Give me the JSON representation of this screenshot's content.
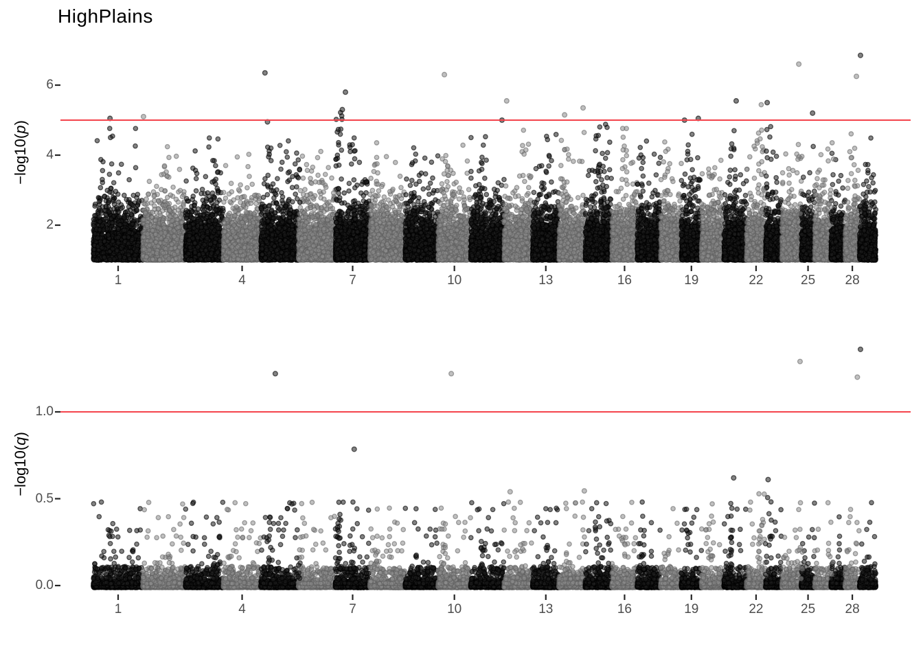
{
  "title": "HighPlains",
  "colors": {
    "background": "#ffffff",
    "significance_line": "#f4434b",
    "point_dark": "#1e1e1e",
    "point_gray": "#8c8c8c",
    "tick_mark": "#262626",
    "tick_label": "#4d4d4d",
    "axis_title": "#000000"
  },
  "genome": {
    "n_chromosomes": 29,
    "chromosome_lengths_mb": [
      158,
      136,
      121,
      120,
      120,
      118,
      110,
      113,
      105,
      104,
      107,
      91,
      84,
      84,
      85,
      81,
      75,
      66,
      64,
      72,
      72,
      61,
      52,
      62,
      43,
      52,
      45,
      46,
      52
    ]
  },
  "chart_data": [
    {
      "panel": "top",
      "type": "scatter",
      "subtype": "manhattan",
      "title": "HighPlains",
      "xlabel": "",
      "ylabel": "−log10(p)",
      "ylabel_prefix": "−log10(",
      "ylabel_var": "p",
      "ylabel_suffix": ")",
      "x_ticks": [
        {
          "label": "1",
          "chrom": 1
        },
        {
          "label": "4",
          "chrom": 4
        },
        {
          "label": "7",
          "chrom": 7
        },
        {
          "label": "10",
          "chrom": 10
        },
        {
          "label": "13",
          "chrom": 13
        },
        {
          "label": "16",
          "chrom": 16
        },
        {
          "label": "19",
          "chrom": 19
        },
        {
          "label": "22",
          "chrom": 22
        },
        {
          "label": "25",
          "chrom": 25
        },
        {
          "label": "28",
          "chrom": 28
        }
      ],
      "y_ticks": [
        {
          "label": "2",
          "value": 2
        },
        {
          "label": "4",
          "value": 4
        },
        {
          "label": "6",
          "value": 6
        }
      ],
      "ylim_plotted": [
        1.0,
        6.85
      ],
      "significance_line": 5,
      "background_points_per_mb": 14,
      "outliers": [
        {
          "pos_mb": 53,
          "v": 5.05
        },
        {
          "pos_mb": 160,
          "v": 5.1
        },
        {
          "pos_mb": 548,
          "v": 6.35
        },
        {
          "pos_mb": 556,
          "v": 4.95
        },
        {
          "pos_mb": 795,
          "v": 5.3
        },
        {
          "pos_mb": 805,
          "v": 5.8
        },
        {
          "pos_mb": 1121,
          "v": 6.3
        },
        {
          "pos_mb": 1305,
          "v": 5.0
        },
        {
          "pos_mb": 1320,
          "v": 5.55
        },
        {
          "pos_mb": 1505,
          "v": 5.15
        },
        {
          "pos_mb": 1564,
          "v": 5.35
        },
        {
          "pos_mb": 1888,
          "v": 5.0
        },
        {
          "pos_mb": 1932,
          "v": 5.05
        },
        {
          "pos_mb": 2053,
          "v": 5.55
        },
        {
          "pos_mb": 2152,
          "v": 5.5
        },
        {
          "pos_mb": 2253,
          "v": 6.6
        },
        {
          "pos_mb": 2297,
          "v": 5.2
        },
        {
          "pos_mb": 2437,
          "v": 6.25
        },
        {
          "pos_mb": 2450,
          "v": 6.85
        }
      ],
      "peaks": [
        {
          "pos_mb": 59,
          "top": 4.8,
          "n": 10
        },
        {
          "pos_mb": 235,
          "top": 4.4,
          "n": 8
        },
        {
          "pos_mb": 389,
          "top": 4.3,
          "n": 8
        },
        {
          "pos_mb": 564,
          "top": 4.85,
          "n": 10
        },
        {
          "pos_mb": 652,
          "top": 4.35,
          "n": 8
        },
        {
          "pos_mb": 784,
          "top": 5.3,
          "n": 22
        },
        {
          "pos_mb": 828,
          "top": 4.55,
          "n": 12
        },
        {
          "pos_mb": 905,
          "top": 4.5,
          "n": 10
        },
        {
          "pos_mb": 1025,
          "top": 4.4,
          "n": 8
        },
        {
          "pos_mb": 1124,
          "top": 4.6,
          "n": 10
        },
        {
          "pos_mb": 1245,
          "top": 4.6,
          "n": 12
        },
        {
          "pos_mb": 1377,
          "top": 4.5,
          "n": 8
        },
        {
          "pos_mb": 1454,
          "top": 4.6,
          "n": 10
        },
        {
          "pos_mb": 1513,
          "top": 4.45,
          "n": 8
        },
        {
          "pos_mb": 1610,
          "top": 4.85,
          "n": 14
        },
        {
          "pos_mb": 1640,
          "top": 5.0,
          "n": 8
        },
        {
          "pos_mb": 1695,
          "top": 4.8,
          "n": 10
        },
        {
          "pos_mb": 1750,
          "top": 4.4,
          "n": 8
        },
        {
          "pos_mb": 1827,
          "top": 4.5,
          "n": 8
        },
        {
          "pos_mb": 1904,
          "top": 4.9,
          "n": 10
        },
        {
          "pos_mb": 1970,
          "top": 4.5,
          "n": 8
        },
        {
          "pos_mb": 2042,
          "top": 4.7,
          "n": 10
        },
        {
          "pos_mb": 2134,
          "top": 5.45,
          "n": 14
        },
        {
          "pos_mb": 2156,
          "top": 5.45,
          "n": 10
        },
        {
          "pos_mb": 2211,
          "top": 4.3,
          "n": 6
        },
        {
          "pos_mb": 2255,
          "top": 4.5,
          "n": 8
        },
        {
          "pos_mb": 2354,
          "top": 4.4,
          "n": 6
        },
        {
          "pos_mb": 2424,
          "top": 4.4,
          "n": 8
        },
        {
          "pos_mb": 2470,
          "top": 4.3,
          "n": 6
        }
      ]
    },
    {
      "panel": "bottom",
      "type": "scatter",
      "subtype": "manhattan",
      "title": "",
      "xlabel": "",
      "ylabel": "−log10(q)",
      "ylabel_prefix": "−log10(",
      "ylabel_var": "q",
      "ylabel_suffix": ")",
      "x_ticks": [
        {
          "label": "1",
          "chrom": 1
        },
        {
          "label": "4",
          "chrom": 4
        },
        {
          "label": "7",
          "chrom": 7
        },
        {
          "label": "10",
          "chrom": 10
        },
        {
          "label": "13",
          "chrom": 13
        },
        {
          "label": "16",
          "chrom": 16
        },
        {
          "label": "19",
          "chrom": 19
        },
        {
          "label": "22",
          "chrom": 22
        },
        {
          "label": "25",
          "chrom": 25
        },
        {
          "label": "28",
          "chrom": 28
        }
      ],
      "y_ticks": [
        {
          "label": "1.0",
          "value": 1.0
        },
        {
          "label": "0.5",
          "value": 0.5
        },
        {
          "label": "0.0",
          "value": 0.0
        }
      ],
      "ylim_plotted": [
        0.0,
        1.36
      ],
      "significance_line": 1.0,
      "baseline_points_per_mb": 10,
      "scatter_levels": [
        0.04,
        0.07,
        0.1,
        0.13,
        0.165,
        0.2,
        0.24,
        0.28,
        0.32,
        0.36,
        0.395,
        0.44,
        0.475
      ],
      "outliers": [
        {
          "pos_mb": 581,
          "v": 1.22
        },
        {
          "pos_mb": 833,
          "v": 0.785
        },
        {
          "pos_mb": 1143,
          "v": 1.22
        },
        {
          "pos_mb": 1331,
          "v": 0.54
        },
        {
          "pos_mb": 1568,
          "v": 0.545
        },
        {
          "pos_mb": 2045,
          "v": 0.62
        },
        {
          "pos_mb": 2155,
          "v": 0.61
        },
        {
          "pos_mb": 2257,
          "v": 1.29
        },
        {
          "pos_mb": 2440,
          "v": 1.2
        },
        {
          "pos_mb": 2450,
          "v": 1.36
        }
      ]
    }
  ]
}
